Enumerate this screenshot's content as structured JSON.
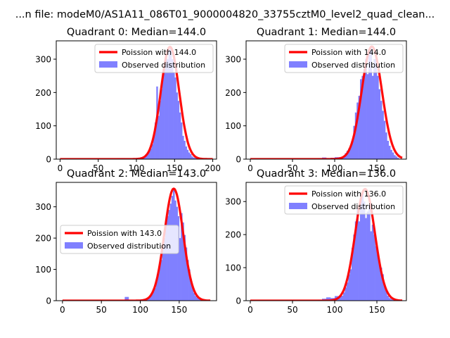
{
  "figure": {
    "suptitle": "...n file: modeM0/AS1A11_086T01_9000004820_33755cztM0_level2_quad_clean..."
  },
  "colors": {
    "poisson_line": "#ff0000",
    "histogram_fill": "#8080ff",
    "axes": "#000000"
  },
  "chart_data": [
    {
      "type": "bar",
      "panel": "Quadrant 0",
      "title": "Quadrant 0: Median=144.0",
      "xlim": [
        -5,
        205
      ],
      "ylim": [
        0,
        355
      ],
      "xticks": [
        0,
        50,
        100,
        150,
        200
      ],
      "yticks": [
        0,
        100,
        200,
        300
      ],
      "legend_position": "top-right",
      "legend": [
        "Poission with 144.0",
        "Observed distribution"
      ],
      "mean": 144,
      "scale": 337,
      "curve_x_range": [
        0,
        200
      ],
      "histogram": {
        "x": [
          75,
          80,
          85,
          90,
          95,
          100,
          105,
          110,
          112,
          114,
          116,
          118,
          120,
          122,
          124,
          126,
          128,
          130,
          132,
          134,
          136,
          138,
          140,
          142,
          144,
          146,
          148,
          150,
          152,
          154,
          156,
          158,
          160,
          162,
          164,
          166,
          168,
          170,
          172,
          174,
          176,
          178,
          180,
          182,
          184
        ],
        "y": [
          2,
          3,
          2,
          2,
          2,
          4,
          5,
          8,
          15,
          20,
          24,
          32,
          45,
          70,
          110,
          218,
          130,
          175,
          210,
          255,
          270,
          310,
          300,
          330,
          336,
          300,
          260,
          245,
          200,
          175,
          140,
          110,
          70,
          55,
          38,
          28,
          20,
          15,
          8,
          5,
          4,
          3,
          2,
          1,
          1
        ]
      }
    },
    {
      "type": "bar",
      "panel": "Quadrant 1",
      "title": "Quadrant 1: Median=144.0",
      "xlim": [
        -5,
        185
      ],
      "ylim": [
        0,
        355
      ],
      "xticks": [
        0,
        50,
        100,
        150
      ],
      "yticks": [
        0,
        100,
        200,
        300
      ],
      "legend_position": "top-right",
      "legend": [
        "Poission with 144.0",
        "Observed distribution"
      ],
      "mean": 144,
      "scale": 338,
      "curve_x_range": [
        0,
        180
      ],
      "histogram": {
        "x": [
          80,
          85,
          90,
          95,
          100,
          105,
          110,
          112,
          114,
          116,
          118,
          120,
          122,
          124,
          126,
          128,
          130,
          132,
          134,
          136,
          138,
          140,
          142,
          144,
          146,
          148,
          150,
          152,
          154,
          156,
          158,
          160,
          162,
          164,
          166,
          168,
          170,
          172,
          174
        ],
        "y": [
          2,
          5,
          3,
          4,
          6,
          6,
          10,
          18,
          25,
          32,
          40,
          55,
          100,
          140,
          170,
          190,
          240,
          250,
          270,
          300,
          255,
          320,
          338,
          250,
          300,
          300,
          250,
          210,
          175,
          145,
          115,
          80,
          55,
          40,
          28,
          20,
          12,
          8,
          4
        ]
      }
    },
    {
      "type": "bar",
      "panel": "Quadrant 2",
      "title": "Quadrant 2: Median=143.0",
      "xlim": [
        -8,
        198
      ],
      "ylim": [
        0,
        378
      ],
      "xticks": [
        0,
        50,
        100,
        150
      ],
      "yticks": [
        0,
        100,
        200,
        300
      ],
      "legend_position": "center-left",
      "legend": [
        "Poission with 143.0",
        "Observed distribution"
      ],
      "mean": 143,
      "scale": 358,
      "curve_x_range": [
        0,
        190
      ],
      "histogram": {
        "x": [
          80,
          85,
          90,
          95,
          100,
          105,
          110,
          112,
          114,
          116,
          118,
          120,
          122,
          124,
          126,
          128,
          130,
          132,
          134,
          136,
          138,
          140,
          142,
          144,
          146,
          148,
          150,
          152,
          154,
          156,
          158,
          160,
          162,
          164,
          166,
          168,
          170,
          172,
          174,
          176,
          178
        ],
        "y": [
          12,
          3,
          2,
          3,
          4,
          5,
          8,
          15,
          20,
          30,
          40,
          60,
          85,
          110,
          130,
          170,
          200,
          260,
          270,
          290,
          310,
          335,
          358,
          320,
          300,
          270,
          200,
          280,
          250,
          210,
          170,
          130,
          100,
          70,
          45,
          25,
          15,
          10,
          6,
          4,
          2
        ]
      }
    },
    {
      "type": "bar",
      "panel": "Quadrant 3",
      "title": "Quadrant 3: Median=136.0",
      "xlim": [
        -5,
        185
      ],
      "ylim": [
        0,
        358
      ],
      "xticks": [
        0,
        50,
        100,
        150
      ],
      "yticks": [
        0,
        100,
        200,
        300
      ],
      "legend_position": "top-right",
      "legend": [
        "Poission with 136.0",
        "Observed distribution"
      ],
      "mean": 136,
      "scale": 338,
      "curve_x_range": [
        0,
        180
      ],
      "histogram": {
        "x": [
          80,
          85,
          90,
          95,
          100,
          105,
          110,
          112,
          114,
          116,
          118,
          120,
          122,
          124,
          126,
          128,
          130,
          132,
          134,
          136,
          138,
          140,
          142,
          144,
          146,
          148,
          150,
          152,
          154,
          156,
          158,
          160,
          162,
          164,
          166,
          168,
          170
        ],
        "y": [
          2,
          6,
          10,
          8,
          14,
          15,
          25,
          40,
          55,
          80,
          95,
          160,
          200,
          240,
          280,
          240,
          320,
          330,
          300,
          250,
          270,
          290,
          210,
          230,
          200,
          165,
          140,
          110,
          100,
          80,
          45,
          30,
          15,
          8,
          5,
          3,
          2
        ]
      }
    }
  ]
}
